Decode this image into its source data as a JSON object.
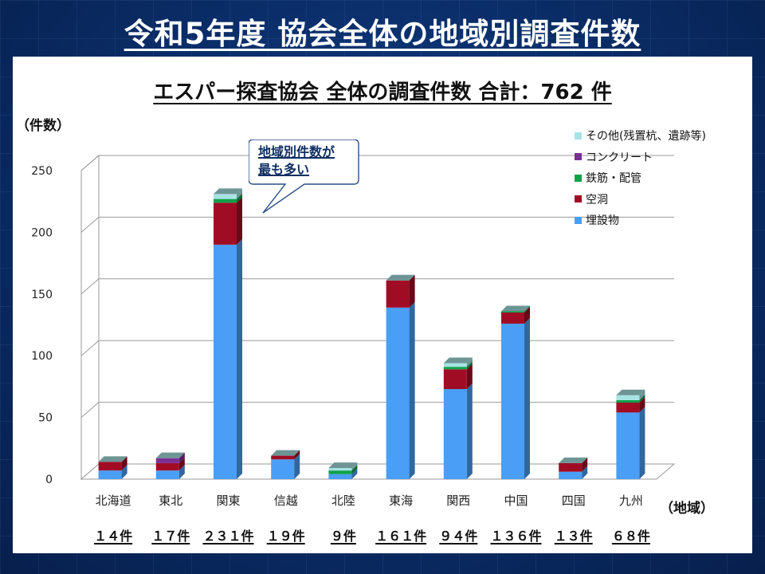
{
  "slide_title": "令和5年度 協会全体の地域別調査件数",
  "chart_title": "エスパー探査協会 全体の調査件数 合計：762 件",
  "y_unit_label": "（件数）",
  "x_unit_label": "（地域）",
  "callout": {
    "line1": "地域別件数が",
    "line2": "最も多い"
  },
  "colors": {
    "埋設物": "#4a9ef5",
    "空洞": "#a10c25",
    "鉄筋・配管": "#10a14a",
    "コンクリート": "#7a2f96",
    "その他": "#a6e3e5"
  },
  "totals": [
    "１４件",
    "１７件",
    "２３１件",
    "１９件",
    "９件",
    "１６１件",
    "９４件",
    "１３６件",
    "１３件",
    "６８件"
  ],
  "chart_data": {
    "type": "bar",
    "stacked": true,
    "categories": [
      "北海道",
      "東北",
      "関東",
      "信越",
      "北陸",
      "東海",
      "関西",
      "中国",
      "四国",
      "九州"
    ],
    "series": [
      {
        "name": "埋設物",
        "values": [
          7,
          7,
          190,
          16,
          4,
          139,
          73,
          126,
          6,
          54
        ]
      },
      {
        "name": "空洞",
        "values": [
          7,
          6,
          34,
          3,
          0,
          22,
          16,
          9,
          7,
          8
        ]
      },
      {
        "name": "鉄筋・配管",
        "values": [
          0,
          0,
          3,
          0,
          3,
          0,
          2,
          1,
          0,
          2
        ]
      },
      {
        "name": "コンクリート",
        "values": [
          0,
          4,
          0,
          0,
          0,
          0,
          0,
          0,
          0,
          0
        ]
      },
      {
        "name": "その他(残置杭、遺跡等)",
        "values": [
          0,
          0,
          4,
          0,
          2,
          0,
          3,
          0,
          0,
          4
        ]
      }
    ],
    "ylim": [
      0,
      250
    ],
    "yticks": [
      0,
      50,
      100,
      150,
      200,
      250
    ],
    "legend_order": [
      "その他(残置杭、遺跡等)",
      "コンクリート",
      "鉄筋・配管",
      "空洞",
      "埋設物"
    ],
    "legend_position": "top-right",
    "grid": true
  }
}
